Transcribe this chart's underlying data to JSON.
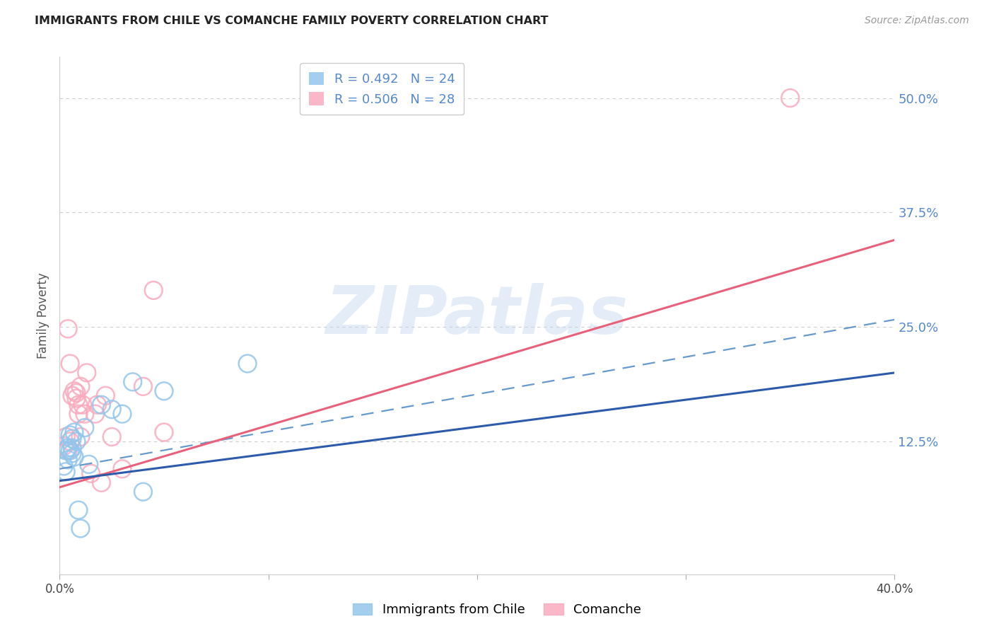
{
  "title": "IMMIGRANTS FROM CHILE VS COMANCHE FAMILY POVERTY CORRELATION CHART",
  "source": "Source: ZipAtlas.com",
  "ylabel": "Family Poverty",
  "ytick_labels": [
    "12.5%",
    "25.0%",
    "37.5%",
    "50.0%"
  ],
  "ytick_values": [
    0.125,
    0.25,
    0.375,
    0.5
  ],
  "xlim": [
    0.0,
    0.4
  ],
  "ylim": [
    -0.02,
    0.545
  ],
  "legend_line1": "R = 0.492   N = 24",
  "legend_line2": "R = 0.506   N = 28",
  "watermark": "ZIPatlas",
  "blue_scatter_x": [
    0.002,
    0.003,
    0.003,
    0.004,
    0.004,
    0.005,
    0.005,
    0.006,
    0.006,
    0.006,
    0.007,
    0.007,
    0.008,
    0.009,
    0.01,
    0.012,
    0.014,
    0.02,
    0.025,
    0.03,
    0.035,
    0.04,
    0.05,
    0.09
  ],
  "blue_scatter_y": [
    0.098,
    0.092,
    0.115,
    0.105,
    0.118,
    0.115,
    0.132,
    0.128,
    0.118,
    0.112,
    0.135,
    0.108,
    0.125,
    0.05,
    0.03,
    0.14,
    0.1,
    0.165,
    0.16,
    0.155,
    0.19,
    0.07,
    0.18,
    0.21
  ],
  "pink_scatter_x": [
    0.002,
    0.003,
    0.004,
    0.004,
    0.005,
    0.005,
    0.006,
    0.007,
    0.008,
    0.008,
    0.009,
    0.009,
    0.01,
    0.01,
    0.011,
    0.012,
    0.013,
    0.015,
    0.017,
    0.018,
    0.02,
    0.022,
    0.025,
    0.03,
    0.04,
    0.045,
    0.05,
    0.35
  ],
  "pink_scatter_y": [
    0.12,
    0.13,
    0.115,
    0.248,
    0.125,
    0.21,
    0.175,
    0.18,
    0.178,
    0.172,
    0.165,
    0.155,
    0.185,
    0.13,
    0.165,
    0.155,
    0.2,
    0.09,
    0.155,
    0.165,
    0.08,
    0.175,
    0.13,
    0.095,
    0.185,
    0.29,
    0.135,
    0.5
  ],
  "blue_solid_line_x": [
    0.0,
    0.4
  ],
  "blue_solid_line_y": [
    0.082,
    0.2
  ],
  "blue_dash_line_x": [
    0.0,
    0.4
  ],
  "blue_dash_line_y": [
    0.095,
    0.258
  ],
  "pink_line_x": [
    0.0,
    0.4
  ],
  "pink_line_y": [
    0.075,
    0.345
  ],
  "blue_scatter_color": "#93C6EC",
  "pink_scatter_color": "#F9ABBE",
  "blue_solid_color": "#2B5BAA",
  "blue_dash_color": "#6699CC",
  "pink_line_color": "#E8607A",
  "background_color": "#FFFFFF",
  "grid_color": "#CCCCCC",
  "ytick_color": "#5588CC",
  "title_color": "#222222",
  "source_color": "#999999"
}
